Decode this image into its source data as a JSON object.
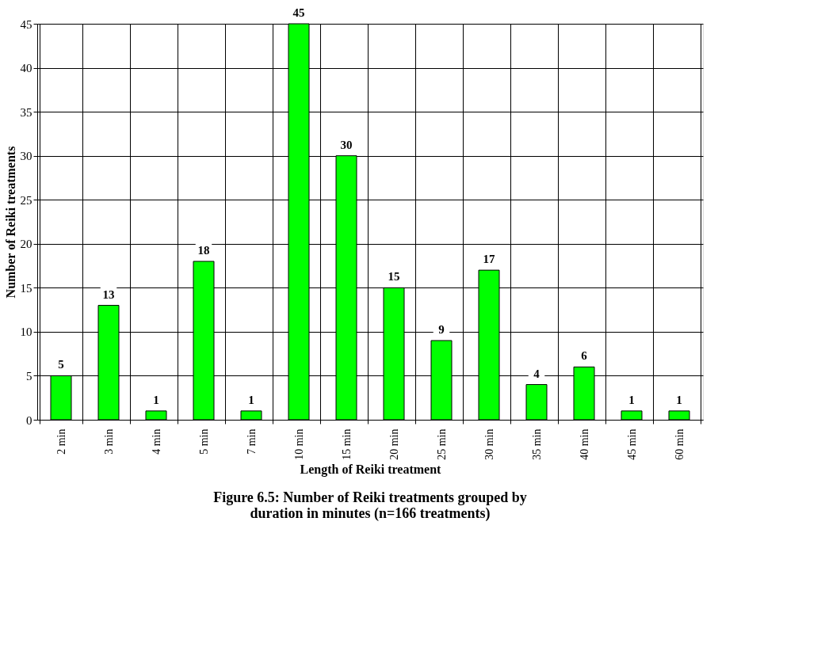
{
  "chart_data": {
    "type": "bar",
    "xlabel": "Length of Reiki treatment",
    "ylabel": "Number of Reiki treatments",
    "categories": [
      "2 min",
      "3 min",
      "4 min",
      "5 min",
      "7 min",
      "10 min",
      "15 min",
      "20 min",
      "25 min",
      "30 min",
      "35 min",
      "40 min",
      "45 min",
      "60 min"
    ],
    "values": [
      5,
      13,
      1,
      18,
      1,
      45,
      30,
      15,
      9,
      17,
      4,
      6,
      1,
      1
    ],
    "color": "#00ff00",
    "ylim": [
      0,
      45
    ],
    "yticks": [
      0,
      5,
      10,
      15,
      20,
      25,
      30,
      35,
      40,
      45
    ],
    "grid": true,
    "data_labels": true,
    "annotations": [
      "Figure 6.5:      Number of Reiki treatments grouped by",
      "duration in minutes (n=166 treatments)"
    ]
  }
}
